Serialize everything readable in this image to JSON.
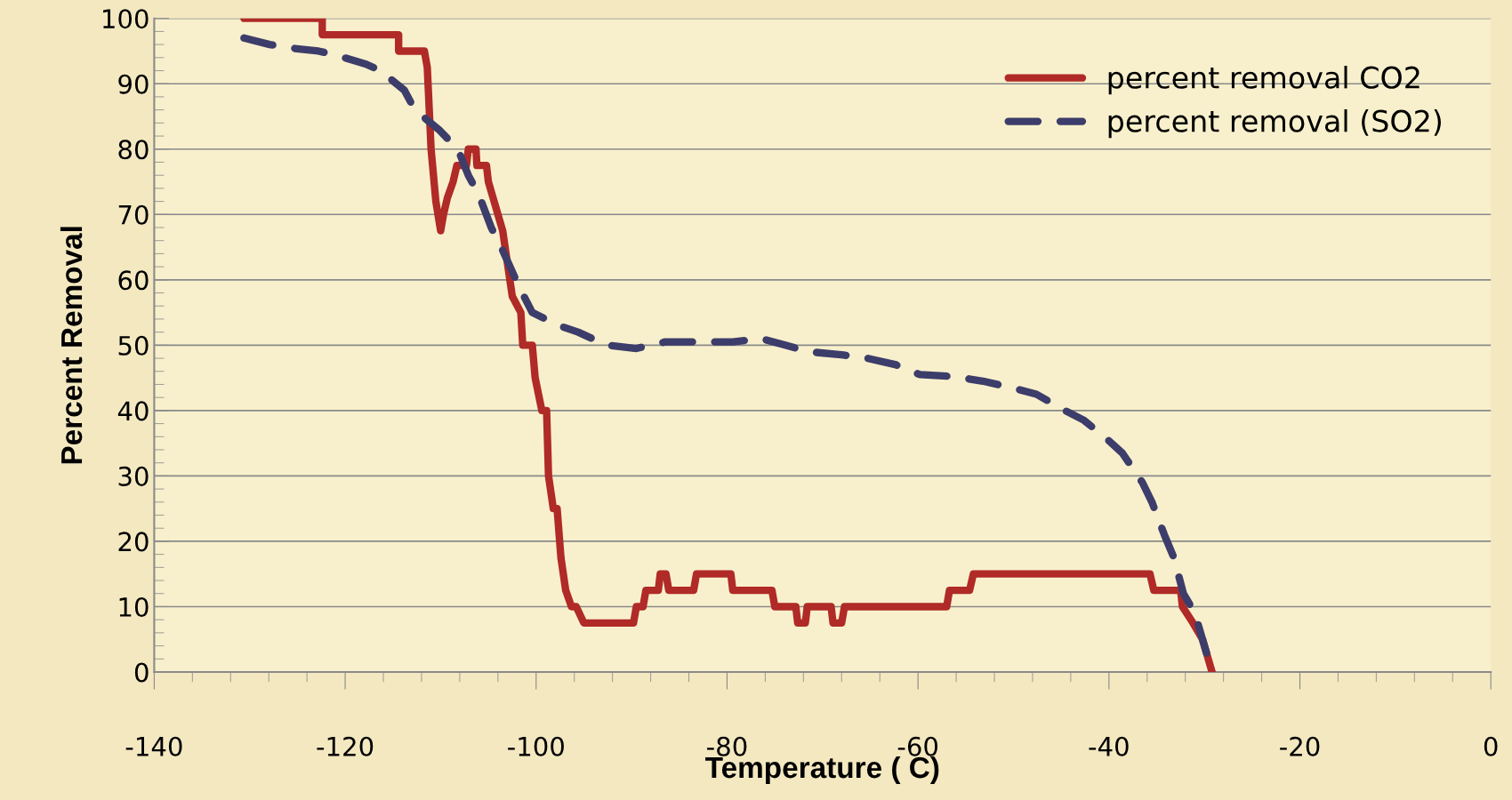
{
  "chart_data": {
    "type": "line",
    "xlabel": "Temperature ( C)",
    "ylabel": "Percent Removal",
    "xlim": [
      -140,
      0
    ],
    "xticks": [
      -140,
      -120,
      -100,
      -80,
      -60,
      -40,
      -20,
      0
    ],
    "ylim": [
      0,
      100
    ],
    "yticks": [
      0,
      10,
      20,
      30,
      40,
      50,
      60,
      70,
      80,
      90,
      100
    ],
    "grid": "y",
    "legend": "top right",
    "marker": "none",
    "series": [
      {
        "name": "percent removal CO2",
        "color": "#b02a27",
        "line_style": "solid",
        "x": [
          -130.6,
          -122.4,
          -122.4,
          -114.4,
          -114.4,
          -111.7,
          -111.4,
          -111.0,
          -110.5,
          -110.0,
          -109.7,
          -109.3,
          -108.7,
          -108.3,
          -107.3,
          -107.1,
          -106.3,
          -106.2,
          -105.2,
          -105.0,
          -104.5,
          -104.0,
          -103.5,
          -103.0,
          -102.5,
          -101.6,
          -101.4,
          -100.4,
          -100.1,
          -99.4,
          -98.9,
          -98.7,
          -98.2,
          -97.8,
          -97.4,
          -96.9,
          -96.3,
          -95.8,
          -95.0,
          -89.8,
          -89.5,
          -88.8,
          -88.5,
          -87.2,
          -87.0,
          -86.4,
          -86.1,
          -83.5,
          -83.2,
          -79.6,
          -79.4,
          -75.3,
          -75.0,
          -72.8,
          -72.6,
          -71.8,
          -71.6,
          -69.1,
          -68.9,
          -68.0,
          -67.7,
          -57.0,
          -56.7,
          -54.6,
          -54.2,
          -35.7,
          -35.3,
          -32.5,
          -32.3,
          -31.2,
          -30.2,
          -29.7,
          -29.2
        ],
        "values": [
          100,
          100,
          97.5,
          97.5,
          95,
          95,
          92.5,
          80,
          72,
          67.5,
          70,
          72.5,
          75,
          77.5,
          77.5,
          80,
          80,
          77.5,
          77.5,
          75,
          72.5,
          70,
          67.5,
          62.5,
          57.5,
          55,
          50,
          50,
          45,
          40,
          40,
          30,
          25,
          25,
          17.5,
          12.5,
          10,
          10,
          7.5,
          7.5,
          10,
          10,
          12.5,
          12.5,
          15,
          15,
          12.5,
          12.5,
          15,
          15,
          12.5,
          12.5,
          10,
          10,
          7.5,
          7.5,
          10,
          10,
          7.5,
          7.5,
          10,
          10,
          12.5,
          12.5,
          15,
          15,
          12.5,
          12.5,
          10,
          7.5,
          5,
          2.5,
          0
        ]
      },
      {
        "name": "percent removal (SO2)",
        "color": "#3d3d6b",
        "line_style": "dashed",
        "x": [
          -130.6,
          -127.9,
          -125.9,
          -122.8,
          -121.3,
          -117.8,
          -116.3,
          -113.8,
          -112.7,
          -110.2,
          -108.2,
          -107.1,
          -106.0,
          -104.7,
          -103.5,
          -101.8,
          -100.4,
          -97.6,
          -95.6,
          -92.6,
          -89.5,
          -86.5,
          -83.5,
          -79.4,
          -76.4,
          -73.9,
          -71.4,
          -67.8,
          -65.3,
          -62.3,
          -59.8,
          -56.2,
          -53.2,
          -50.2,
          -47.6,
          -44.6,
          -42.6,
          -40.1,
          -38.6,
          -36.5,
          -35.5,
          -34.2,
          -33.2,
          -32.2,
          -31.0,
          -30.0,
          -29.2
        ],
        "values": [
          97,
          96,
          95.5,
          95,
          94.5,
          93,
          92,
          89,
          86,
          83,
          80,
          76,
          73,
          68,
          64.5,
          59,
          55,
          53,
          52,
          50,
          49.5,
          50.5,
          50.5,
          50.5,
          51,
          50,
          49,
          48.5,
          48,
          47,
          45.5,
          45.2,
          44.5,
          43.5,
          42.5,
          40,
          38.5,
          35.5,
          33.5,
          29,
          26,
          21,
          17.5,
          12,
          9,
          4,
          0
        ]
      }
    ]
  }
}
